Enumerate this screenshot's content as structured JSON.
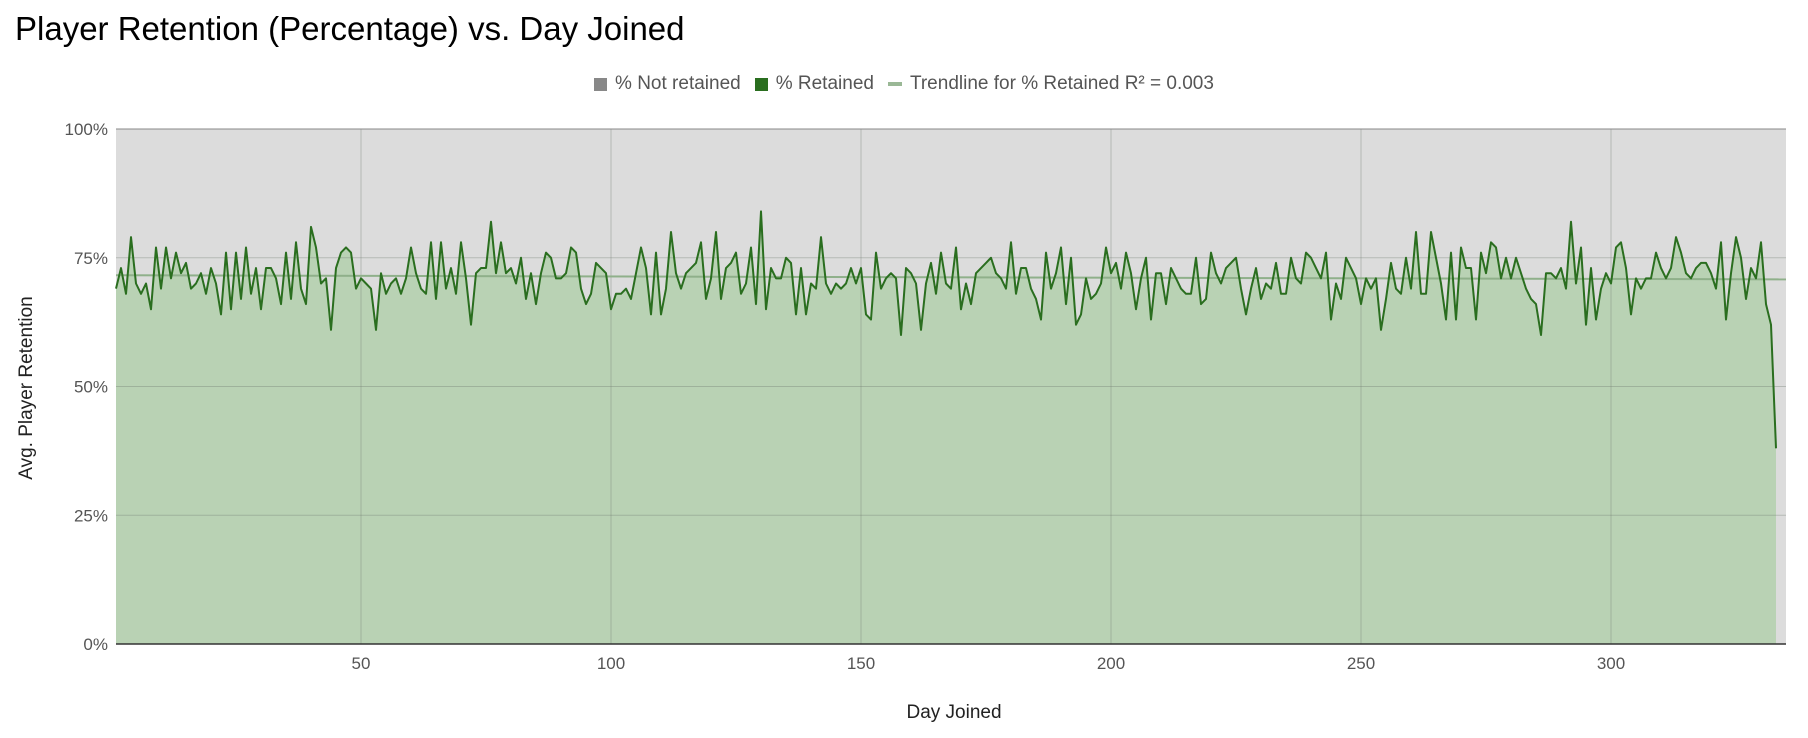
{
  "chart_data": {
    "type": "area",
    "title": "Player Retention (Percentage) vs. Day Joined",
    "xlabel": "Day Joined",
    "ylabel": "Avg. Player Retention",
    "xlim": [
      1,
      335
    ],
    "ylim": [
      0,
      100
    ],
    "x_ticks": [
      50,
      100,
      150,
      200,
      250,
      300
    ],
    "x_tick_labels": [
      "50",
      "100",
      "150",
      "200",
      "250",
      "300"
    ],
    "y_ticks": [
      0,
      25,
      50,
      75,
      100
    ],
    "y_tick_labels": [
      "0%",
      "25%",
      "50%",
      "75%",
      "100%"
    ],
    "grid": true,
    "legend_position": "top-center",
    "stacked": true,
    "series": [
      {
        "name": "% Retained",
        "color": "#2a6e1f",
        "fill_color": "#b9d2b4",
        "x_start": 1,
        "x_step": 1,
        "values": [
          69,
          73,
          68,
          79,
          70,
          68,
          70,
          65,
          77,
          69,
          77,
          71,
          76,
          72,
          74,
          69,
          70,
          72,
          68,
          73,
          70,
          64,
          76,
          65,
          76,
          67,
          77,
          68,
          73,
          65,
          73,
          73,
          71,
          66,
          76,
          67,
          78,
          69,
          66,
          81,
          77,
          70,
          71,
          61,
          73,
          76,
          77,
          76,
          69,
          71,
          70,
          69,
          61,
          72,
          68,
          70,
          71,
          68,
          71,
          77,
          72,
          69,
          68,
          78,
          67,
          78,
          69,
          73,
          68,
          78,
          71,
          62,
          72,
          73,
          73,
          82,
          72,
          78,
          72,
          73,
          70,
          75,
          67,
          72,
          66,
          72,
          76,
          75,
          71,
          71,
          72,
          77,
          76,
          69,
          66,
          68,
          74,
          73,
          72,
          65,
          68,
          68,
          69,
          67,
          72,
          77,
          73,
          64,
          76,
          64,
          69,
          80,
          72,
          69,
          72,
          73,
          74,
          78,
          67,
          71,
          80,
          67,
          73,
          74,
          76,
          68,
          70,
          77,
          66,
          84,
          65,
          73,
          71,
          71,
          75,
          74,
          64,
          73,
          64,
          70,
          69,
          79,
          70,
          68,
          70,
          69,
          70,
          73,
          70,
          73,
          64,
          63,
          76,
          69,
          71,
          72,
          71,
          60,
          73,
          72,
          70,
          61,
          70,
          74,
          68,
          76,
          70,
          69,
          77,
          65,
          70,
          66,
          72,
          73,
          74,
          75,
          72,
          71,
          69,
          78,
          68,
          73,
          73,
          69,
          67,
          63,
          76,
          69,
          72,
          77,
          66,
          75,
          62,
          64,
          71,
          67,
          68,
          70,
          77,
          72,
          74,
          69,
          76,
          72,
          65,
          71,
          75,
          63,
          72,
          72,
          66,
          73,
          71,
          69,
          68,
          68,
          75,
          66,
          67,
          76,
          72,
          70,
          73,
          74,
          75,
          69,
          64,
          69,
          73,
          67,
          70,
          69,
          74,
          68,
          68,
          75,
          71,
          70,
          76,
          75,
          73,
          71,
          76,
          63,
          70,
          67,
          75,
          73,
          71,
          66,
          71,
          69,
          71,
          61,
          67,
          74,
          69,
          68,
          75,
          69,
          80,
          68,
          68,
          80,
          75,
          70,
          63,
          76,
          63,
          77,
          73,
          73,
          63,
          76,
          72,
          78,
          77,
          71,
          75,
          71,
          75,
          72,
          69,
          67,
          66,
          60,
          72,
          72,
          71,
          73,
          69,
          82,
          70,
          77,
          62,
          73,
          63,
          69,
          72,
          70,
          77,
          78,
          73,
          64,
          71,
          69,
          71,
          71,
          76,
          73,
          71,
          73,
          79,
          76,
          72,
          71,
          73,
          74,
          74,
          72,
          69,
          78,
          63,
          72,
          79,
          75,
          67,
          73,
          71,
          78,
          66,
          62,
          38
        ]
      },
      {
        "name": "% Not retained",
        "color": "#dcdcdc",
        "legend_color": "#888888",
        "note": "stacked remainder to 100%"
      }
    ],
    "trendline": {
      "name": "Trendline for % Retained R² = 0.003",
      "r_squared": 0.003,
      "start": [
        1,
        71.6
      ],
      "end": [
        335,
        70.8
      ],
      "color": "#8fb08a"
    },
    "legend": [
      {
        "label": "% Not retained",
        "color": "#888888",
        "kind": "swatch"
      },
      {
        "label": "% Retained",
        "color": "#2a6e1f",
        "kind": "swatch"
      },
      {
        "label": "Trendline for % Retained R² = 0.003",
        "color": "#9ab896",
        "kind": "line"
      }
    ]
  }
}
